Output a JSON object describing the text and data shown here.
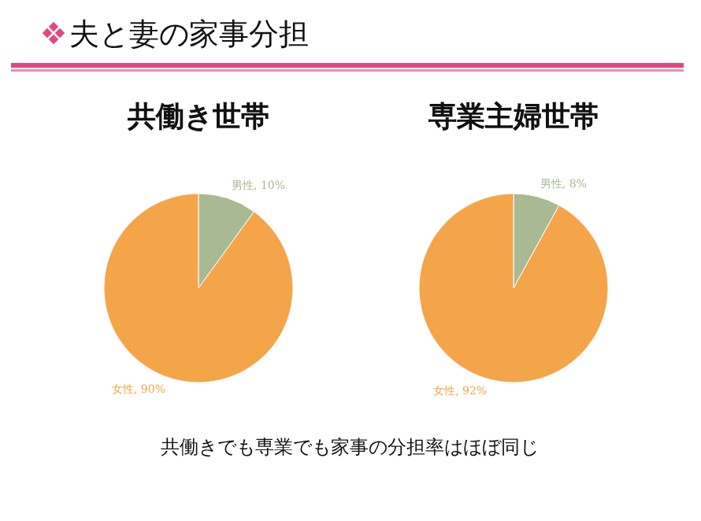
{
  "chart_data": [
    {
      "type": "other",
      "title": "夫と妻の家事分担",
      "annotations": [
        "共働きでも専業でも家事の分担率はほぼ同じ"
      ]
    },
    {
      "type": "pie",
      "title": "共働き世帯",
      "categories": [
        "男性",
        "女性"
      ],
      "values": [
        10,
        90
      ],
      "value_labels": [
        ", 10%",
        ", 90%"
      ],
      "colors": [
        "#a9b993",
        "#f4a54a"
      ]
    },
    {
      "type": "pie",
      "title": "専業主婦世帯",
      "categories": [
        "男性",
        "女性"
      ],
      "values": [
        8,
        92
      ],
      "value_labels": [
        ", 8%",
        ", 92%"
      ],
      "colors": [
        "#a9b993",
        "#f4a54a"
      ]
    }
  ]
}
